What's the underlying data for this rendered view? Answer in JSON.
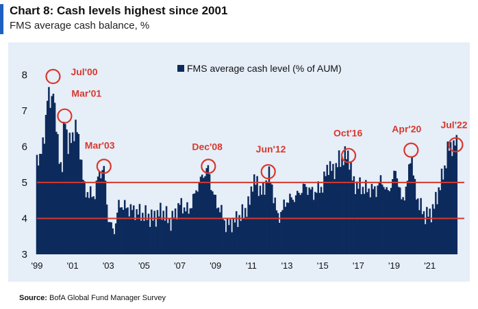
{
  "title": "Chart 8: Cash levels highest since 2001",
  "subtitle": "FMS average cash balance, %",
  "source_label": "Source:",
  "source_text": "BofA Global Fund Manager Survey",
  "colors": {
    "bar": "#0d2a5c",
    "reference_line": "#d8382c",
    "annotation": "#d8382c",
    "panel_bg": "#e6eef8"
  },
  "chart_data": {
    "type": "bar",
    "title": "Chart 8: Cash levels highest since 2001",
    "subtitle": "FMS average cash balance, %",
    "xlabel": "",
    "ylabel": "",
    "ylim": [
      3,
      8.5
    ],
    "xlim": [
      1999.0,
      2022.7
    ],
    "yticks": [
      3,
      4,
      5,
      6,
      7,
      8
    ],
    "xticks": [
      {
        "label": "'99",
        "value": 1999.0
      },
      {
        "label": "'01",
        "value": 2001.0
      },
      {
        "label": "'03",
        "value": 2003.0
      },
      {
        "label": "'05",
        "value": 2005.0
      },
      {
        "label": "'07",
        "value": 2007.0
      },
      {
        "label": "'09",
        "value": 2009.0
      },
      {
        "label": "'11",
        "value": 2011.0
      },
      {
        "label": "'13",
        "value": 2013.0
      },
      {
        "label": "'15",
        "value": 2015.0
      },
      {
        "label": "'17",
        "value": 2017.0
      },
      {
        "label": "'19",
        "value": 2019.0
      },
      {
        "label": "'21",
        "value": 2021.0
      }
    ],
    "grid": false,
    "legend": {
      "position": "top-center",
      "entries": [
        "FMS average cash level (% of AUM)"
      ]
    },
    "reference_lines": [
      4.0,
      5.0
    ],
    "series": [
      {
        "name": "FMS average cash level (% of AUM)",
        "anchors": [
          [
            1999.0,
            5.6
          ],
          [
            1999.2,
            5.8
          ],
          [
            1999.4,
            6.1
          ],
          [
            1999.6,
            7.6
          ],
          [
            1999.8,
            7.0
          ],
          [
            1999.9,
            7.9
          ],
          [
            2000.05,
            6.6
          ],
          [
            2000.2,
            6.0
          ],
          [
            2000.4,
            5.2
          ],
          [
            2000.55,
            7.0
          ],
          [
            2000.75,
            6.0
          ],
          [
            2001.0,
            6.3
          ],
          [
            2001.2,
            6.6
          ],
          [
            2001.45,
            5.8
          ],
          [
            2001.65,
            4.8
          ],
          [
            2001.9,
            4.7
          ],
          [
            2002.2,
            4.6
          ],
          [
            2002.45,
            5.2
          ],
          [
            2002.75,
            5.4
          ],
          [
            2003.0,
            4.0
          ],
          [
            2003.3,
            3.6
          ],
          [
            2003.6,
            4.4
          ],
          [
            2004.0,
            4.3
          ],
          [
            2004.5,
            4.2
          ],
          [
            2005.0,
            4.1
          ],
          [
            2005.5,
            4.0
          ],
          [
            2006.0,
            4.2
          ],
          [
            2006.5,
            3.9
          ],
          [
            2007.0,
            4.4
          ],
          [
            2007.5,
            4.2
          ],
          [
            2007.8,
            4.6
          ],
          [
            2008.0,
            4.9
          ],
          [
            2008.3,
            5.2
          ],
          [
            2008.6,
            5.4
          ],
          [
            2008.8,
            4.8
          ],
          [
            2009.0,
            4.5
          ],
          [
            2009.3,
            4.2
          ],
          [
            2009.6,
            3.8
          ],
          [
            2010.0,
            3.9
          ],
          [
            2010.5,
            4.1
          ],
          [
            2010.9,
            4.4
          ],
          [
            2011.1,
            5.1
          ],
          [
            2011.4,
            4.9
          ],
          [
            2011.7,
            4.7
          ],
          [
            2011.95,
            5.3
          ],
          [
            2012.2,
            4.8
          ],
          [
            2012.5,
            4.0
          ],
          [
            2012.8,
            4.3
          ],
          [
            2013.0,
            4.5
          ],
          [
            2013.5,
            4.6
          ],
          [
            2014.0,
            4.9
          ],
          [
            2014.5,
            4.7
          ],
          [
            2015.0,
            4.9
          ],
          [
            2015.3,
            5.5
          ],
          [
            2015.6,
            5.3
          ],
          [
            2015.9,
            5.6
          ],
          [
            2016.2,
            5.7
          ],
          [
            2016.45,
            5.8
          ],
          [
            2016.7,
            5.0
          ],
          [
            2017.0,
            4.9
          ],
          [
            2017.5,
            4.8
          ],
          [
            2018.0,
            4.8
          ],
          [
            2018.3,
            5.1
          ],
          [
            2018.6,
            4.7
          ],
          [
            2018.9,
            5.0
          ],
          [
            2019.1,
            5.4
          ],
          [
            2019.4,
            4.5
          ],
          [
            2019.7,
            4.8
          ],
          [
            2019.95,
            5.9
          ],
          [
            2020.15,
            4.9
          ],
          [
            2020.4,
            4.4
          ],
          [
            2020.7,
            4.1
          ],
          [
            2021.0,
            4.1
          ],
          [
            2021.3,
            4.4
          ],
          [
            2021.55,
            4.9
          ],
          [
            2021.8,
            5.3
          ],
          [
            2022.0,
            5.9
          ],
          [
            2022.2,
            6.0
          ],
          [
            2022.5,
            6.1
          ]
        ]
      }
    ],
    "annotations": [
      {
        "label": "Jul'00",
        "x": 1999.9,
        "y": 7.95
      },
      {
        "label": "Mar'01",
        "x": 2000.55,
        "y": 6.85
      },
      {
        "label": "Mar'03",
        "x": 2002.75,
        "y": 5.45
      },
      {
        "label": "Dec'08",
        "x": 2008.6,
        "y": 5.45
      },
      {
        "label": "Jun'12",
        "x": 2011.95,
        "y": 5.3
      },
      {
        "label": "Oct'16",
        "x": 2016.45,
        "y": 5.75
      },
      {
        "label": "Apr'20",
        "x": 2019.95,
        "y": 5.9
      },
      {
        "label": "Jul'22",
        "x": 2022.45,
        "y": 6.05
      }
    ]
  }
}
